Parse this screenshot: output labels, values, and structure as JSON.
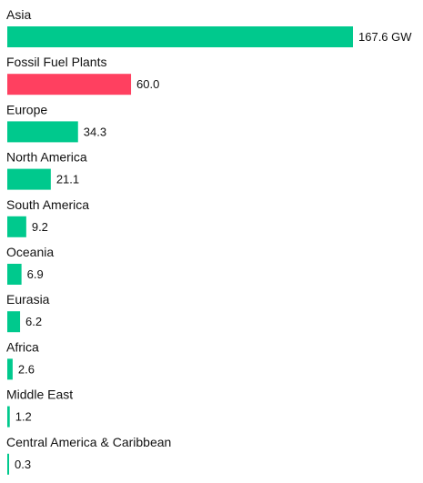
{
  "chart_data": {
    "type": "bar",
    "orientation": "horizontal",
    "categories": [
      "Asia",
      "Fossil Fuel Plants",
      "Europe",
      "North America",
      "South America",
      "Oceania",
      "Eurasia",
      "Africa",
      "Middle East",
      "Central America & Caribbean"
    ],
    "values": [
      167.6,
      60.0,
      34.3,
      21.1,
      9.2,
      6.9,
      6.2,
      2.6,
      1.2,
      0.3
    ],
    "value_labels": [
      "167.6 GW",
      "60.0",
      "34.3",
      "21.1",
      "9.2",
      "6.9",
      "6.2",
      "2.6",
      "1.2",
      "0.3"
    ],
    "colors": [
      "#00c98d",
      "#ff4060",
      "#00c98d",
      "#00c98d",
      "#00c98d",
      "#00c98d",
      "#00c98d",
      "#00c98d",
      "#00c98d",
      "#00c98d"
    ],
    "title": "",
    "xlabel": "",
    "ylabel": "",
    "xlim": [
      0,
      167.6
    ],
    "grid": false,
    "legend": "none"
  }
}
